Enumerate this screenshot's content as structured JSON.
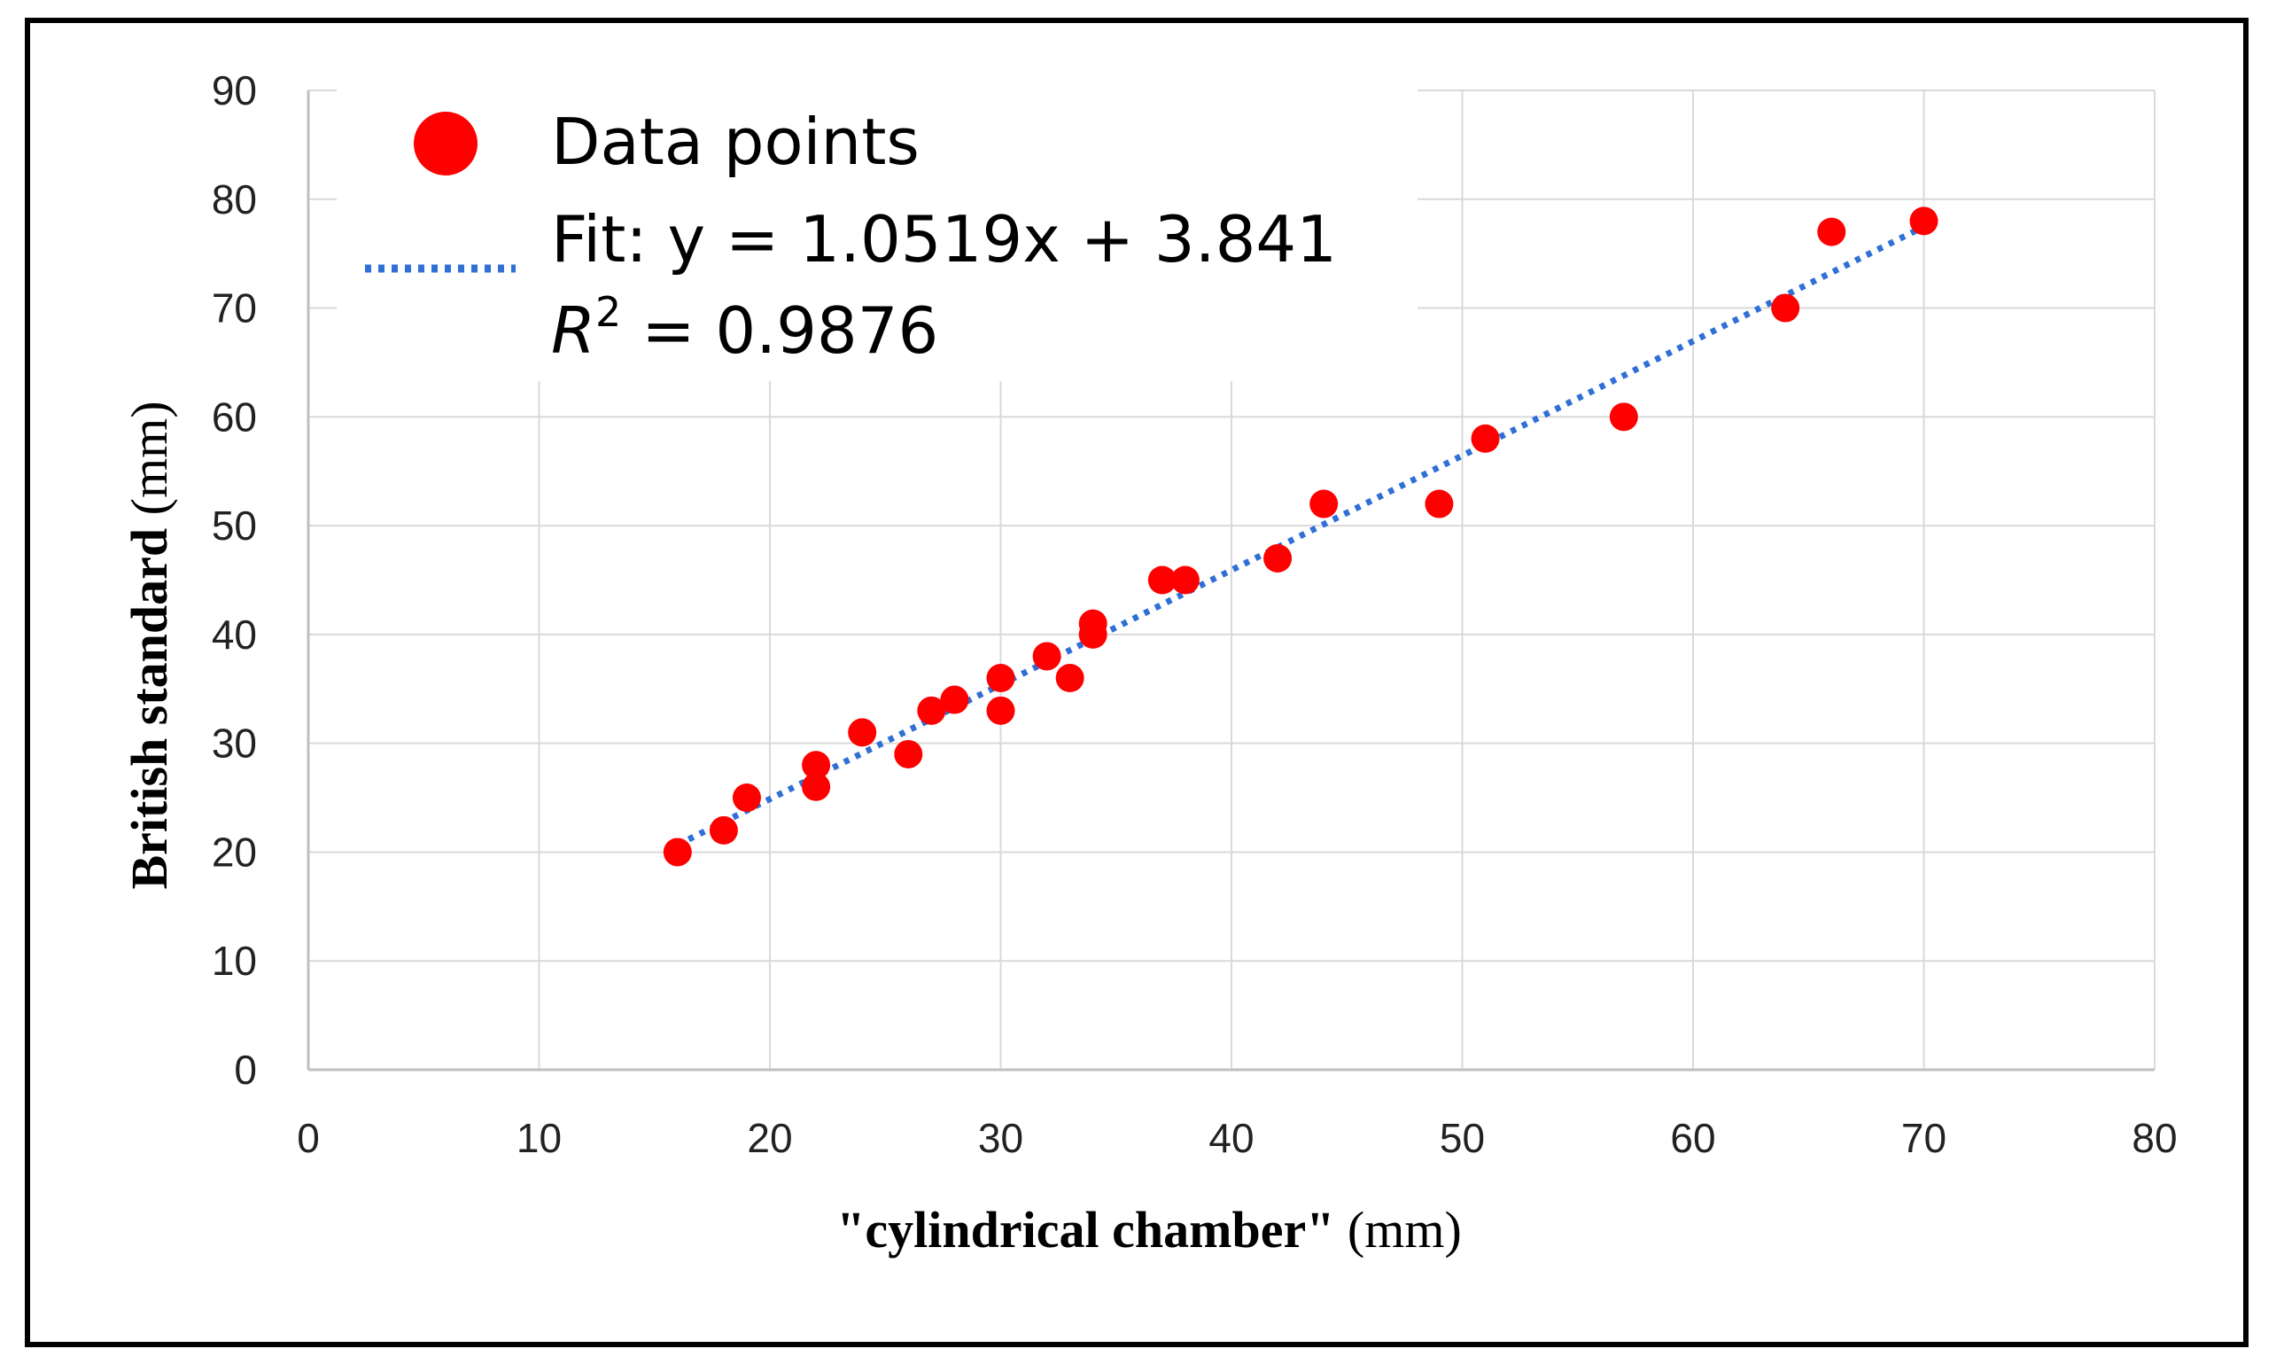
{
  "chart_data": {
    "type": "scatter",
    "xlabel_bold": "\"cylindrical chamber\"",
    "xlabel_unit": " (mm)",
    "ylabel_bold": "British standard",
    "ylabel_unit": " (mm)",
    "xlim": [
      0,
      80
    ],
    "ylim": [
      0,
      90
    ],
    "xticks": [
      0,
      10,
      20,
      30,
      40,
      50,
      60,
      70,
      80
    ],
    "yticks": [
      0,
      10,
      20,
      30,
      40,
      50,
      60,
      70,
      80,
      90
    ],
    "grid": true,
    "legend_position": "top-left",
    "series": [
      {
        "name": "Data points",
        "kind": "points",
        "color": "#ff0000",
        "points": [
          [
            16,
            20
          ],
          [
            18,
            22
          ],
          [
            19,
            25
          ],
          [
            22,
            28
          ],
          [
            22,
            26
          ],
          [
            24,
            31
          ],
          [
            26,
            29
          ],
          [
            27,
            33
          ],
          [
            28,
            34
          ],
          [
            30,
            36
          ],
          [
            30,
            33
          ],
          [
            32,
            38
          ],
          [
            33,
            36
          ],
          [
            34,
            41
          ],
          [
            34,
            40
          ],
          [
            37,
            45
          ],
          [
            38,
            45
          ],
          [
            42,
            47
          ],
          [
            44,
            52
          ],
          [
            49,
            52
          ],
          [
            51,
            58
          ],
          [
            57,
            60
          ],
          [
            64,
            70
          ],
          [
            66,
            77
          ],
          [
            70,
            78
          ]
        ]
      },
      {
        "name": "Fit: y = 1.0519x + 3.841",
        "kind": "fit",
        "color": "#2f6fd6",
        "slope": 1.0519,
        "intercept": 3.841,
        "x_range": [
          16,
          70
        ]
      }
    ],
    "r2_label": "R",
    "r2_exponent": "2",
    "r2_value": " = 0.9876"
  }
}
